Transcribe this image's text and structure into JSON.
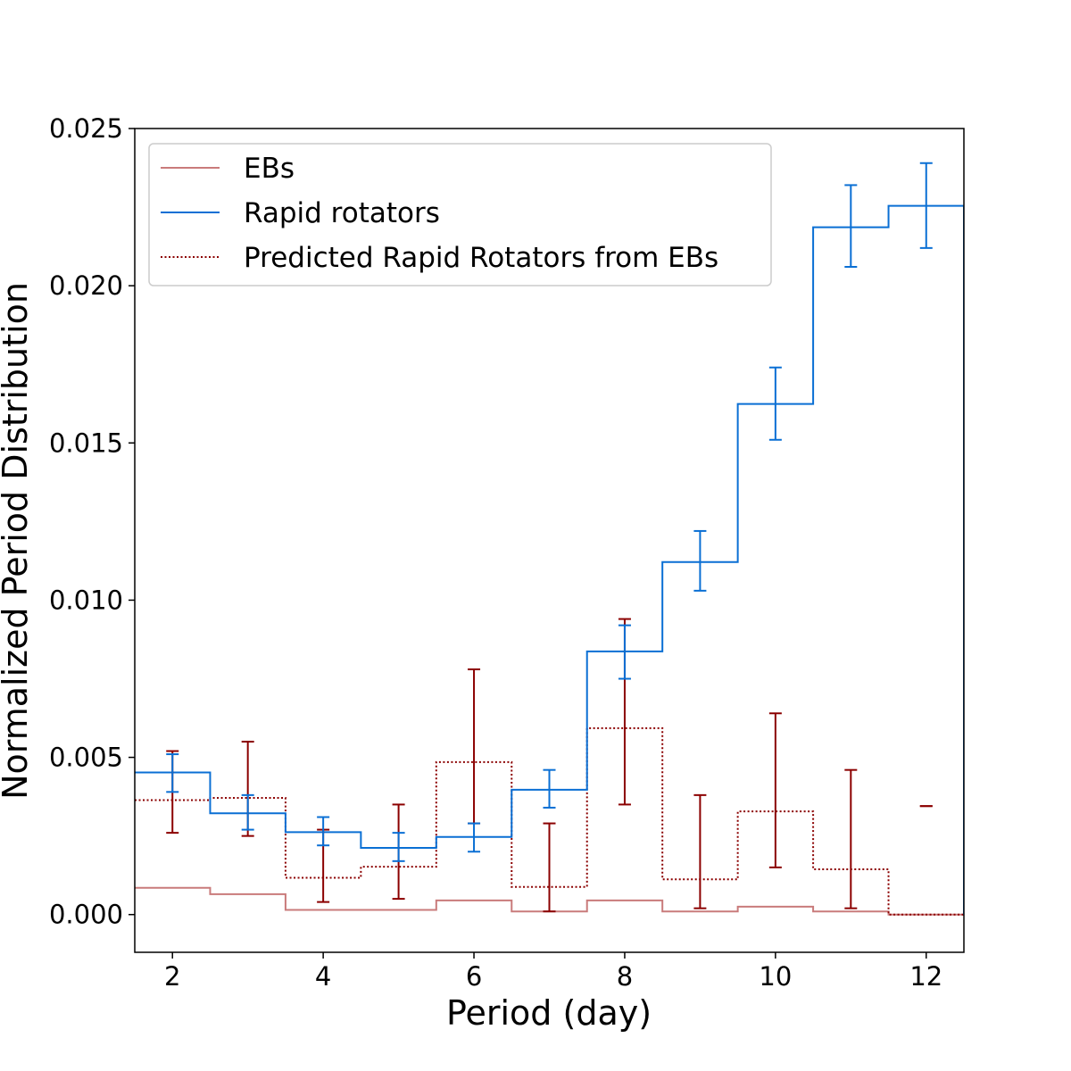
{
  "chart_data": {
    "type": "step",
    "xlabel": "Period (day)",
    "ylabel": "Normalized Period Distribution",
    "xlim": [
      1.5,
      12.5
    ],
    "ylim": [
      -0.0012,
      0.025
    ],
    "xticks": [
      2,
      4,
      6,
      8,
      10,
      12
    ],
    "yticks": [
      0.0,
      0.005,
      0.01,
      0.015,
      0.02,
      0.025
    ],
    "ytick_labels": [
      "0.000",
      "0.005",
      "0.010",
      "0.015",
      "0.020",
      "0.025"
    ],
    "grid": false,
    "legend_position": "top-left",
    "bin_centers": [
      2,
      3,
      4,
      5,
      6,
      7,
      8,
      9,
      10,
      11,
      12
    ],
    "series": [
      {
        "name": "EBs",
        "style": "solid",
        "color": "#c97b7b",
        "values": [
          0.00085,
          0.00065,
          0.00015,
          0.00015,
          0.00045,
          0.0001,
          0.00045,
          0.0001,
          0.00025,
          0.0001,
          0.0
        ]
      },
      {
        "name": "Rapid rotators",
        "style": "solid",
        "color": "#0a6fd4",
        "values": [
          0.00452,
          0.00322,
          0.00262,
          0.00212,
          0.00247,
          0.00397,
          0.00837,
          0.01121,
          0.01624,
          0.02186,
          0.02254
        ],
        "err_low": [
          0.0039,
          0.0027,
          0.0022,
          0.0017,
          0.002,
          0.0034,
          0.0075,
          0.0103,
          0.0151,
          0.0206,
          0.0212
        ],
        "err_high": [
          0.0051,
          0.0038,
          0.0031,
          0.0026,
          0.0029,
          0.0046,
          0.0092,
          0.0122,
          0.0174,
          0.0232,
          0.0239
        ]
      },
      {
        "name": "Predicted Rapid Rotators from EBs",
        "style": "dotted",
        "color": "#8b0000",
        "values": [
          0.00364,
          0.00371,
          0.00117,
          0.00152,
          0.00485,
          0.00088,
          0.00593,
          0.00112,
          0.00328,
          0.00144,
          0.0
        ],
        "err_low": [
          0.0026,
          0.0025,
          0.0004,
          0.0005,
          0.0029,
          0.0001,
          0.0035,
          0.0002,
          0.0015,
          0.0002,
          0.00345
        ],
        "err_high": [
          0.0052,
          0.0055,
          0.0027,
          0.0035,
          0.0078,
          0.0029,
          0.0094,
          0.0038,
          0.0064,
          0.0046,
          0.00345
        ]
      }
    ]
  }
}
